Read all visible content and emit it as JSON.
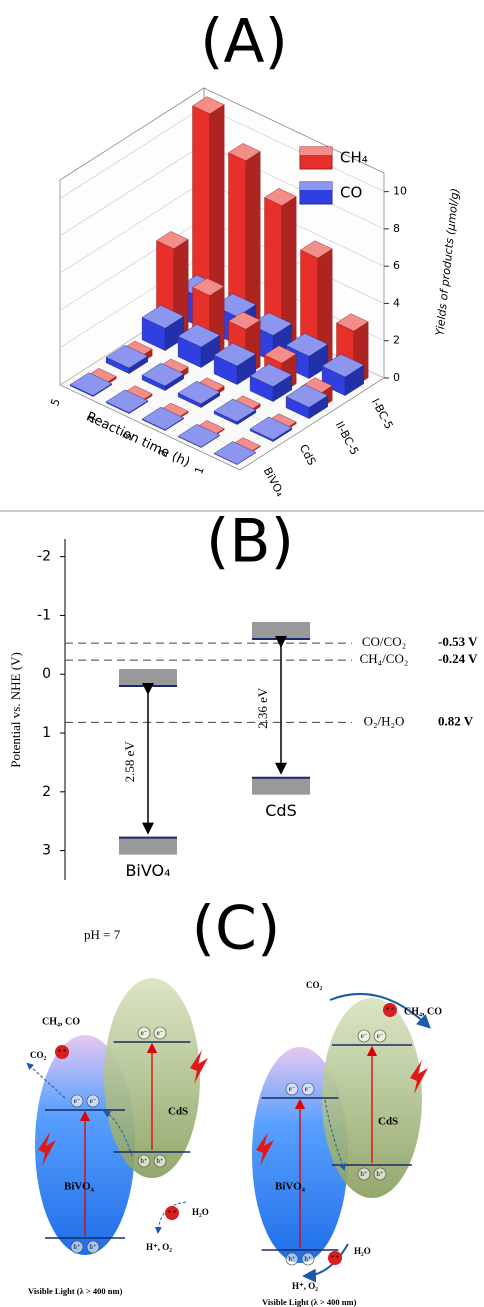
{
  "chart_data": [
    {
      "type": "bar3d",
      "title": "(A)",
      "categories": [
        "1",
        "2",
        "3",
        "4",
        "5"
      ],
      "samples": [
        "BiVO₄",
        "CdS",
        "II-BC-5",
        "I-BC-5"
      ],
      "xlabel": "Reaction time (h)",
      "ylabel": "Yields of products (μmol/g)",
      "series": [
        {
          "name": "CH₄",
          "color": "#e8302a",
          "values": [
            [
              0.05,
              0.06,
              0.08,
              0.1,
              0.12
            ],
            [
              0.1,
              0.15,
              0.2,
              0.3,
              0.35
            ],
            [
              0.8,
              1.6,
              2.5,
              3.4,
              5.0
            ],
            [
              3.0,
              6.0,
              7.9,
              9.4,
              11.0
            ]
          ]
        },
        {
          "name": "CO",
          "color": "#3040e0",
          "values": [
            [
              0.02,
              0.03,
              0.04,
              0.05,
              0.06
            ],
            [
              0.1,
              0.15,
              0.2,
              0.25,
              0.3
            ],
            [
              0.6,
              0.8,
              1.0,
              1.1,
              1.2
            ],
            [
              1.0,
              1.2,
              1.4,
              1.5,
              1.6
            ]
          ]
        }
      ],
      "ylim": [
        0,
        11
      ],
      "yticks": [
        0,
        2,
        4,
        6,
        8,
        10
      ],
      "grid": true
    },
    {
      "type": "band-diagram",
      "title": "(B)",
      "ylabel": "Potential vs. NHE (V)",
      "ylim": [
        -2.3,
        3.5
      ],
      "yticks": [
        -2,
        -1,
        0,
        1,
        2,
        3
      ],
      "inverted": true,
      "materials": [
        {
          "name": "BiVO₄",
          "cb": 0.2,
          "vb": 2.78,
          "gap": 2.58,
          "gap_label": "2.58 eV"
        },
        {
          "name": "CdS",
          "cb": -0.6,
          "vb": 1.76,
          "gap": 2.36,
          "gap_label": "2.36 eV"
        }
      ],
      "references": [
        {
          "name": "CO/CO₂",
          "value": -0.53,
          "value_label": "-0.53 V"
        },
        {
          "name": "CH₄/CO₂",
          "value": -0.24,
          "value_label": "-0.24 V"
        },
        {
          "name": "O₂/H₂O",
          "value": 0.82,
          "value_label": "0.82 V"
        }
      ],
      "note": "pH = 7"
    }
  ],
  "diagram": {
    "title": "(C)",
    "electron": "e⁻",
    "hole": "h⁺",
    "schemes": [
      {
        "products": "CH₄, CO",
        "reactant": "CO₂",
        "semiconductors": [
          "BiVO₄",
          "CdS"
        ],
        "water": "H₂O",
        "oxidation_products": "H⁺, O₂",
        "light": "Visible Light (λ > 400 nm)"
      },
      {
        "products": "CH₄, CO",
        "reactant": "CO₂",
        "semiconductors": [
          "BiVO₄",
          "CdS"
        ],
        "water": "H₂O",
        "oxidation_products": "H⁺, O₂",
        "light": "Visible Light (λ > 400 nm)"
      }
    ]
  }
}
